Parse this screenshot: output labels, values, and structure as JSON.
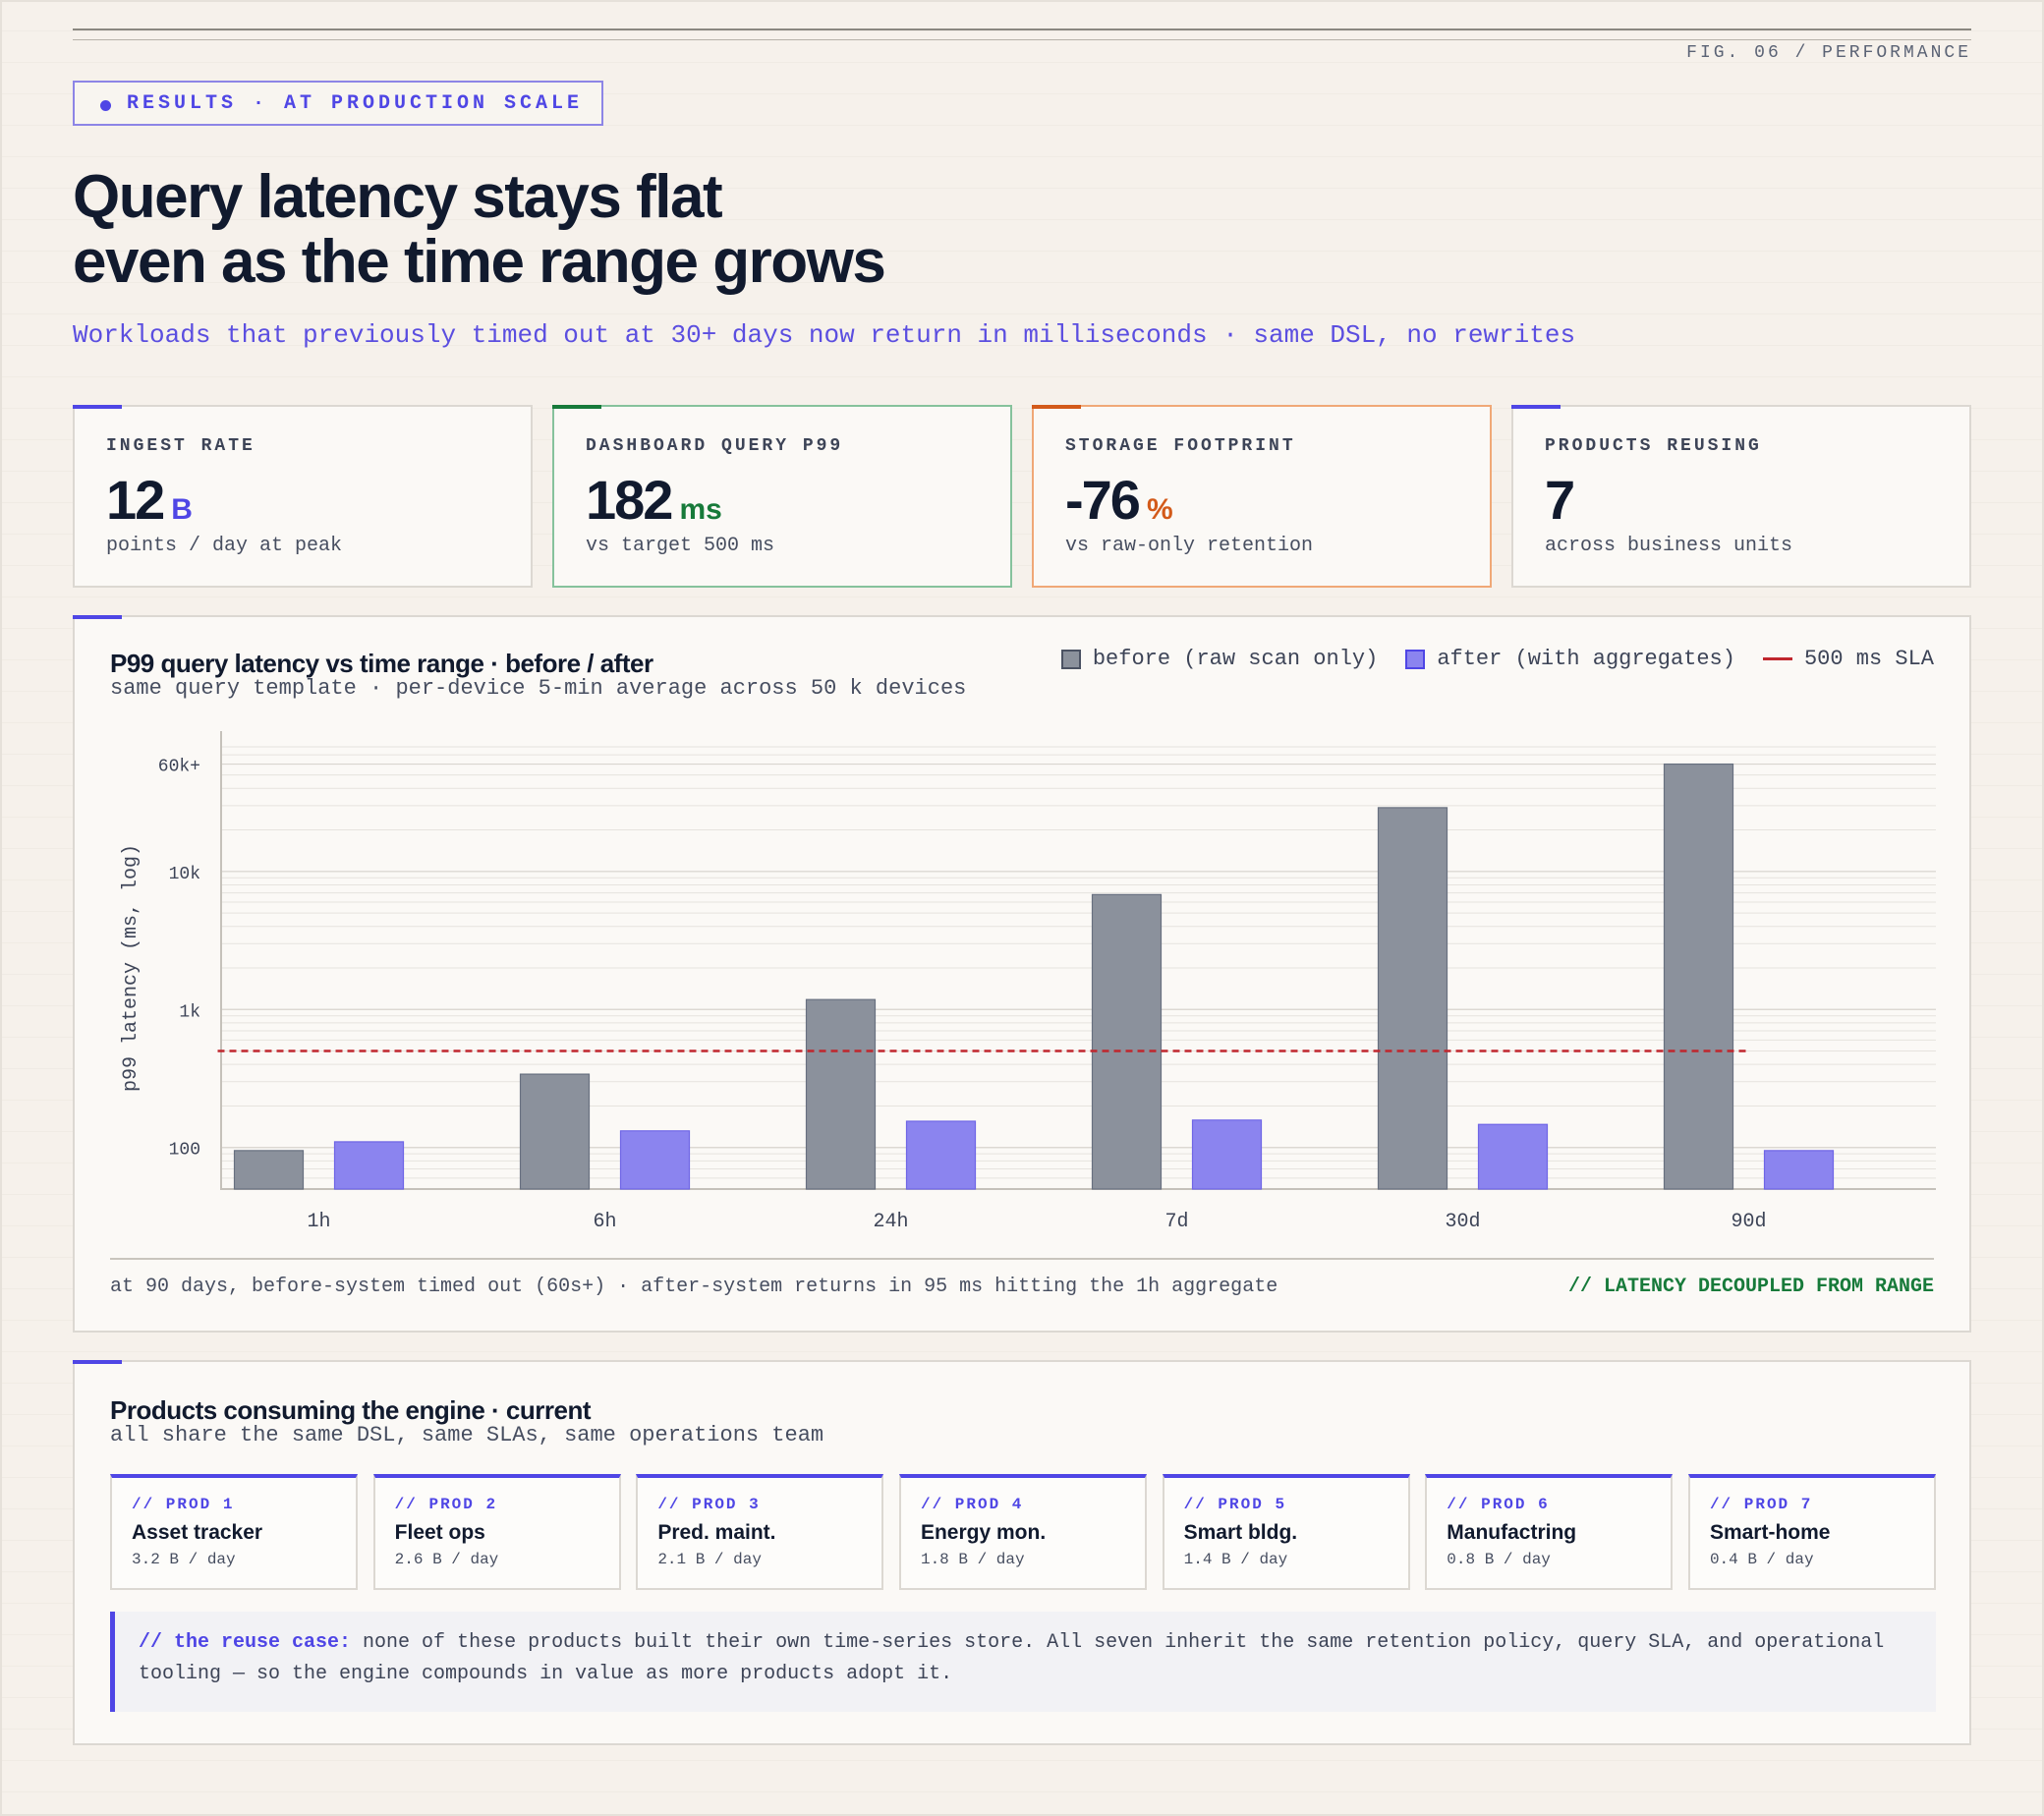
{
  "fig_label": "FIG. 06 / PERFORMANCE",
  "badge": "RESULTS · AT PRODUCTION SCALE",
  "headline": [
    "Query latency stays flat",
    "even as the time range grows"
  ],
  "subline": "Workloads that previously timed out at 30+ days now return in milliseconds · same DSL, no rewrites",
  "kpis": [
    {
      "label": "INGEST RATE",
      "value": "12",
      "unit": "B",
      "sub": "points / day at peak",
      "accent": "#4f46e5",
      "unit_color": "#4f46e5",
      "border": "#dcd8d2"
    },
    {
      "label": "DASHBOARD QUERY P99",
      "value": "182",
      "unit": "ms",
      "sub": "vs target 500 ms",
      "accent": "#177a3a",
      "unit_color": "#177a3a",
      "border": "#86c29c"
    },
    {
      "label": "STORAGE FOOTPRINT",
      "value": "-76",
      "unit": "%",
      "sub": "vs raw-only retention",
      "accent": "#d35a1a",
      "unit_color": "#d35a1a",
      "border": "#f0a877"
    },
    {
      "label": "PRODUCTS REUSING",
      "value": "7",
      "unit": "",
      "sub": "across business units",
      "accent": "#4f46e5",
      "unit_color": "#4f46e5",
      "border": "#dcd8d2"
    }
  ],
  "chart_panel": {
    "title": "P99 query latency vs time range · before / after",
    "subtitle": "same query template · per-device 5-min average across 50 k devices",
    "legend": {
      "before": "before (raw scan only)",
      "after": "after (with aggregates)",
      "sla": "500 ms SLA"
    },
    "footnote": "at 90 days, before-system timed out (60s+) · after-system returns in 95 ms hitting the 1h aggregate",
    "tag": "// LATENCY DECOUPLED FROM RANGE"
  },
  "chart_data": {
    "type": "bar",
    "categories": [
      "1h",
      "6h",
      "24h",
      "7d",
      "30d",
      "90d"
    ],
    "series": [
      {
        "name": "before (raw scan only)",
        "values": [
          95,
          340,
          1180,
          6800,
          29000,
          60000
        ],
        "color": "#8b919c"
      },
      {
        "name": "after (with aggregates)",
        "values": [
          110,
          132,
          155,
          158,
          147,
          95
        ],
        "color": "#8b84ef"
      }
    ],
    "reference_line": {
      "name": "500 ms SLA",
      "value": 500,
      "color": "#c0262d"
    },
    "ylabel": "p99 latency (ms, log)",
    "yscale": "log",
    "ylim": [
      50,
      80000
    ],
    "yticks": [
      100,
      1000,
      10000,
      60000
    ],
    "ytick_labels": [
      "100",
      "1k",
      "10k",
      "60k+"
    ],
    "grid": true,
    "legend_position": "top-right"
  },
  "products_panel": {
    "title": "Products consuming the engine · current",
    "subtitle": "all share the same DSL, same SLAs, same operations team",
    "products": [
      {
        "tag": "// PROD 1",
        "name": "Asset tracker",
        "rate": "3.2 B / day"
      },
      {
        "tag": "// PROD 2",
        "name": "Fleet ops",
        "rate": "2.6 B / day"
      },
      {
        "tag": "// PROD 3",
        "name": "Pred. maint.",
        "rate": "2.1 B / day"
      },
      {
        "tag": "// PROD 4",
        "name": "Energy mon.",
        "rate": "1.8 B / day"
      },
      {
        "tag": "// PROD 5",
        "name": "Smart bldg.",
        "rate": "1.4 B / day"
      },
      {
        "tag": "// PROD 6",
        "name": "Manufactring",
        "rate": "0.8 B / day"
      },
      {
        "tag": "// PROD 7",
        "name": "Smart-home",
        "rate": "0.4 B / day"
      }
    ],
    "callout_lead": "// the reuse case:",
    "callout_text": " none of these products built their own time-series store. All seven inherit the same retention policy, query SLA, and operational tooling — so the engine compounds in value as more products adopt it."
  }
}
